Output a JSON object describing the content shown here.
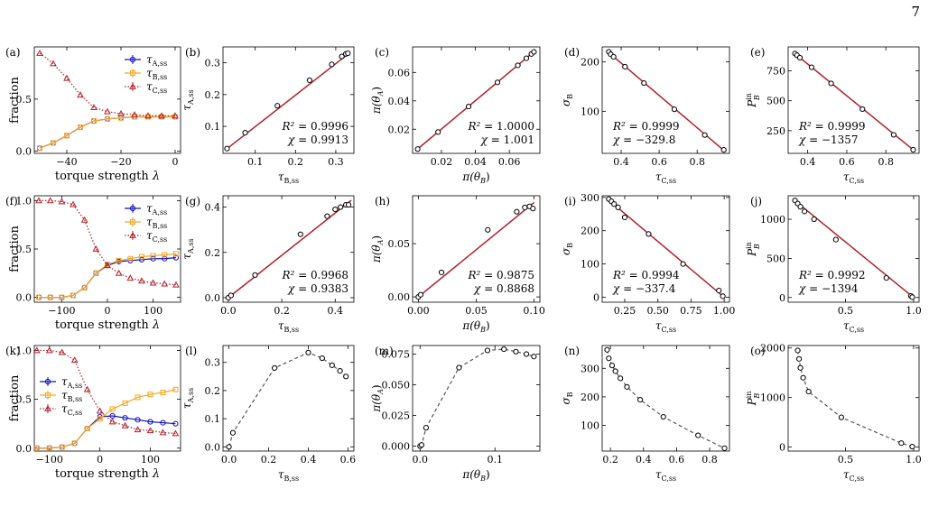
{
  "page_number": "7",
  "colors": {
    "A": "#1010c8",
    "B": "#f5a623",
    "C": "#b0202a",
    "fit": "#b0202a",
    "dashed": "#555555",
    "marker": "#000000"
  },
  "chart_data": [
    {
      "label": "(a)",
      "type": "line",
      "xlabel": "torque strength λ",
      "ylabel": "fraction",
      "xlim": [
        -52,
        2
      ],
      "ylim": [
        -0.02,
        1.0
      ],
      "xticks": [
        -40,
        -20,
        0
      ],
      "xticklabels": [
        "−40",
        "−20",
        "0"
      ],
      "yticks": [
        0.0,
        0.5
      ],
      "yticklabels": [
        "0.0",
        "0.5"
      ],
      "legend": "top-right",
      "series": [
        {
          "name": "τA,ss",
          "color": "A",
          "marker": "circle",
          "style": "solid",
          "x": [
            -50,
            -45,
            -40,
            -35,
            -30,
            -25,
            -20,
            -15,
            -10,
            -5,
            0
          ],
          "y": [
            0.03,
            0.08,
            0.15,
            0.23,
            0.29,
            0.31,
            0.32,
            0.33,
            0.33,
            0.33,
            0.33
          ]
        },
        {
          "name": "τB,ss",
          "color": "B",
          "marker": "square",
          "style": "solid",
          "x": [
            -50,
            -45,
            -40,
            -35,
            -30,
            -25,
            -20,
            -15,
            -10,
            -5,
            0
          ],
          "y": [
            0.03,
            0.08,
            0.15,
            0.23,
            0.29,
            0.31,
            0.32,
            0.33,
            0.33,
            0.33,
            0.33
          ]
        },
        {
          "name": "τC,ss",
          "color": "C",
          "marker": "triangle",
          "style": "dotted",
          "x": [
            -50,
            -45,
            -40,
            -35,
            -30,
            -25,
            -20,
            -15,
            -10,
            -5,
            0
          ],
          "y": [
            0.94,
            0.84,
            0.7,
            0.54,
            0.42,
            0.38,
            0.36,
            0.35,
            0.34,
            0.34,
            0.34
          ]
        }
      ]
    },
    {
      "label": "(b)",
      "type": "scatter",
      "xlabel": "τB,ss",
      "ylabel": "τA,ss",
      "xlim": [
        0.02,
        0.345
      ],
      "ylim": [
        0.015,
        0.35
      ],
      "xticks": [
        0.1,
        0.2,
        0.3
      ],
      "xticklabels": [
        "0.1",
        "0.2",
        "0.3"
      ],
      "yticks": [
        0.1,
        0.2,
        0.3
      ],
      "yticklabels": [
        "0.1",
        "0.2",
        "0.3"
      ],
      "fit": [
        [
          0.03,
          0.0297
        ],
        [
          0.335,
          0.332
        ]
      ],
      "annotation": [
        "R² = 0.9996",
        "χ = 0.9913"
      ],
      "annotation_pos": "bottom-right",
      "x": [
        0.03,
        0.075,
        0.155,
        0.235,
        0.29,
        0.315,
        0.325,
        0.33
      ],
      "y": [
        0.03,
        0.08,
        0.165,
        0.245,
        0.295,
        0.32,
        0.328,
        0.33
      ]
    },
    {
      "label": "(c)",
      "type": "scatter",
      "xlabel": "π(θB)",
      "ylabel": "π(θA)",
      "xlim": [
        0.003,
        0.078
      ],
      "ylim": [
        0.003,
        0.078
      ],
      "xticks": [
        0.02,
        0.04,
        0.06
      ],
      "xticklabels": [
        "0.02",
        "0.04",
        "0.06"
      ],
      "yticks": [
        0.02,
        0.04,
        0.06
      ],
      "yticklabels": [
        "0.02",
        "0.04",
        "0.06"
      ],
      "fit": [
        [
          0.006,
          0.0061
        ],
        [
          0.0745,
          0.0746
        ]
      ],
      "annotation": [
        "R² = 1.0000",
        "χ = 1.001"
      ],
      "annotation_pos": "bottom-right",
      "x": [
        0.006,
        0.018,
        0.036,
        0.053,
        0.065,
        0.07,
        0.073,
        0.0745
      ],
      "y": [
        0.006,
        0.018,
        0.036,
        0.053,
        0.065,
        0.07,
        0.073,
        0.0745
      ]
    },
    {
      "label": "(d)",
      "type": "scatter",
      "xlabel": "τC,ss",
      "ylabel": "σB",
      "xlim": [
        0.3,
        0.97
      ],
      "ylim": [
        15,
        230
      ],
      "xticks": [
        0.4,
        0.6,
        0.8
      ],
      "xticklabels": [
        "0.4",
        "0.6",
        "0.8"
      ],
      "yticks": [
        100,
        200
      ],
      "yticklabels": [
        "100",
        "200"
      ],
      "fit": [
        [
          0.33,
          220
        ],
        [
          0.94,
          21
        ]
      ],
      "annotation": [
        "R² = 0.9999",
        "χ = −329.8"
      ],
      "annotation_pos": "bottom-left",
      "x": [
        0.335,
        0.345,
        0.36,
        0.42,
        0.52,
        0.68,
        0.84,
        0.94
      ],
      "y": [
        220,
        215,
        210,
        190,
        157,
        104,
        52,
        22
      ]
    },
    {
      "label": "(e)",
      "type": "scatter",
      "xlabel": "τC,ss",
      "ylabel": "PBin",
      "xlim": [
        0.3,
        0.97
      ],
      "ylim": [
        60,
        950
      ],
      "xticks": [
        0.4,
        0.6,
        0.8
      ],
      "xticklabels": [
        "0.4",
        "0.6",
        "0.8"
      ],
      "yticks": [
        250,
        500,
        750
      ],
      "yticklabels": [
        "250",
        "500",
        "750"
      ],
      "fit": [
        [
          0.33,
          900
        ],
        [
          0.94,
          90
        ]
      ],
      "annotation": [
        "R² = 0.9999",
        "χ = −1357"
      ],
      "annotation_pos": "bottom-left",
      "x": [
        0.335,
        0.345,
        0.36,
        0.42,
        0.52,
        0.68,
        0.84,
        0.94
      ],
      "y": [
        895,
        880,
        860,
        780,
        645,
        430,
        215,
        90
      ]
    },
    {
      "label": "(f)",
      "type": "line",
      "xlabel": "torque strength λ",
      "ylabel": "fraction",
      "xlim": [
        -160,
        160
      ],
      "ylim": [
        -0.05,
        1.05
      ],
      "xticks": [
        -100,
        0,
        100
      ],
      "xticklabels": [
        "−100",
        "0",
        "100"
      ],
      "yticks": [
        0.0,
        0.5,
        1.0
      ],
      "yticklabels": [
        "0.0",
        "0.5",
        "1.0"
      ],
      "legend": "top-right",
      "series": [
        {
          "name": "τA,ss",
          "color": "A",
          "marker": "circle",
          "style": "solid",
          "x": [
            -150,
            -125,
            -100,
            -75,
            -50,
            -25,
            0,
            25,
            50,
            75,
            100,
            125,
            150
          ],
          "y": [
            0.0,
            0.0,
            0.0,
            0.02,
            0.1,
            0.25,
            0.33,
            0.37,
            0.38,
            0.39,
            0.4,
            0.4,
            0.41
          ]
        },
        {
          "name": "τB,ss",
          "color": "B",
          "marker": "square",
          "style": "solid",
          "x": [
            -150,
            -125,
            -100,
            -75,
            -50,
            -25,
            0,
            25,
            50,
            75,
            100,
            125,
            150
          ],
          "y": [
            0.0,
            0.0,
            0.0,
            0.02,
            0.1,
            0.25,
            0.34,
            0.38,
            0.4,
            0.42,
            0.43,
            0.44,
            0.45
          ]
        },
        {
          "name": "τC,ss",
          "color": "C",
          "marker": "triangle",
          "style": "dotted",
          "x": [
            -150,
            -125,
            -100,
            -75,
            -50,
            -25,
            0,
            25,
            50,
            75,
            100,
            125,
            150
          ],
          "y": [
            1.0,
            1.0,
            0.99,
            0.96,
            0.8,
            0.5,
            0.33,
            0.25,
            0.2,
            0.17,
            0.15,
            0.14,
            0.13
          ]
        }
      ]
    },
    {
      "label": "(g)",
      "type": "scatter",
      "xlabel": "τB,ss",
      "ylabel": "τA,ss",
      "xlim": [
        -0.02,
        0.47
      ],
      "ylim": [
        -0.02,
        0.45
      ],
      "xticks": [
        0.0,
        0.2,
        0.4
      ],
      "xticklabels": [
        "0.0",
        "0.2",
        "0.4"
      ],
      "yticks": [
        0.0,
        0.2,
        0.4
      ],
      "yticklabels": [
        "0.0",
        "0.2",
        "0.4"
      ],
      "fit": [
        [
          0.0,
          0.0
        ],
        [
          0.46,
          0.43
        ]
      ],
      "annotation": [
        "R² = 0.9968",
        "χ = 0.9383"
      ],
      "annotation_pos": "bottom-right",
      "x": [
        0.0,
        0.01,
        0.1,
        0.27,
        0.37,
        0.4,
        0.42,
        0.44,
        0.45
      ],
      "y": [
        0.0,
        0.01,
        0.1,
        0.28,
        0.36,
        0.39,
        0.4,
        0.41,
        0.41
      ]
    },
    {
      "label": "(h)",
      "type": "scatter",
      "xlabel": "π(θB)",
      "ylabel": "π(θA)",
      "xlim": [
        -0.005,
        0.105
      ],
      "ylim": [
        -0.005,
        0.095
      ],
      "xticks": [
        0.0,
        0.05,
        0.1
      ],
      "xticklabels": [
        "0.00",
        "0.05",
        "0.10"
      ],
      "yticks": [
        0.0,
        0.05
      ],
      "yticklabels": [
        "0.00",
        "0.05"
      ],
      "fit": [
        [
          0.0,
          0.0
        ],
        [
          0.1,
          0.0887
        ]
      ],
      "annotation": [
        "R² = 0.9875",
        "χ = 0.8868"
      ],
      "annotation_pos": "bottom-right",
      "x": [
        0.0,
        0.002,
        0.02,
        0.06,
        0.085,
        0.092,
        0.096,
        0.099
      ],
      "y": [
        0.0,
        0.002,
        0.023,
        0.063,
        0.08,
        0.084,
        0.085,
        0.083
      ]
    },
    {
      "label": "(i)",
      "type": "scatter",
      "xlabel": "τC,ss",
      "ylabel": "σB",
      "xlim": [
        0.08,
        1.04
      ],
      "ylim": [
        -15,
        305
      ],
      "xticks": [
        0.25,
        0.5,
        0.75,
        1.0
      ],
      "xticklabels": [
        "0.25",
        "0.50",
        "0.75",
        "1.00"
      ],
      "yticks": [
        0,
        100,
        200,
        300
      ],
      "yticklabels": [
        "0",
        "100",
        "200",
        "300"
      ],
      "fit": [
        [
          0.12,
          295
        ],
        [
          1.0,
          0
        ]
      ],
      "annotation": [
        "R² = 0.9994",
        "χ = −337.4"
      ],
      "annotation_pos": "bottom-left",
      "x": [
        0.13,
        0.15,
        0.17,
        0.2,
        0.25,
        0.43,
        0.69,
        0.96,
        0.99
      ],
      "y": [
        295,
        288,
        280,
        270,
        240,
        190,
        100,
        20,
        3
      ]
    },
    {
      "label": "(j)",
      "type": "scatter",
      "xlabel": "τC,ss",
      "ylabel": "PBin",
      "xlim": [
        0.08,
        1.04
      ],
      "ylim": [
        -60,
        1300
      ],
      "xticks": [
        0.5,
        1.0
      ],
      "xticklabels": [
        "0.5",
        "1.0"
      ],
      "yticks": [
        0,
        500,
        1000
      ],
      "yticklabels": [
        "0",
        "500",
        "1000"
      ],
      "fit": [
        [
          0.12,
          1250
        ],
        [
          1.0,
          0
        ]
      ],
      "annotation": [
        "R² = 0.9992",
        "χ = −1394"
      ],
      "annotation_pos": "bottom-left",
      "x": [
        0.13,
        0.15,
        0.17,
        0.2,
        0.27,
        0.43,
        0.8,
        0.98,
        0.99
      ],
      "y": [
        1240,
        1200,
        1160,
        1100,
        1000,
        740,
        250,
        20,
        5
      ]
    },
    {
      "label": "(k)",
      "type": "line",
      "xlabel": "torque strength λ",
      "ylabel": "fraction",
      "xlim": [
        -130,
        160
      ],
      "ylim": [
        -0.03,
        1.05
      ],
      "xticks": [
        -100,
        0,
        100
      ],
      "xticklabels": [
        "−100",
        "0",
        "100"
      ],
      "yticks": [
        0.0,
        0.5,
        1.0
      ],
      "yticklabels": [
        "0.0",
        "0.5",
        "1.0"
      ],
      "legend": "middle-left",
      "series": [
        {
          "name": "τA,ss",
          "color": "A",
          "marker": "circle",
          "style": "solid",
          "x": [
            -125,
            -100,
            -75,
            -50,
            -25,
            0,
            25,
            50,
            75,
            100,
            125,
            150
          ],
          "y": [
            0.0,
            0.0,
            0.01,
            0.05,
            0.2,
            0.32,
            0.33,
            0.31,
            0.29,
            0.27,
            0.26,
            0.25
          ]
        },
        {
          "name": "τB,ss",
          "color": "B",
          "marker": "square",
          "style": "solid",
          "x": [
            -125,
            -100,
            -75,
            -50,
            -25,
            0,
            25,
            50,
            75,
            100,
            125,
            150
          ],
          "y": [
            0.0,
            0.0,
            0.01,
            0.05,
            0.2,
            0.3,
            0.4,
            0.46,
            0.52,
            0.55,
            0.57,
            0.6
          ]
        },
        {
          "name": "τC,ss",
          "color": "C",
          "marker": "triangle",
          "style": "dotted",
          "x": [
            -125,
            -100,
            -75,
            -50,
            -25,
            0,
            25,
            50,
            75,
            100,
            125,
            150
          ],
          "y": [
            1.0,
            1.0,
            0.98,
            0.9,
            0.6,
            0.38,
            0.27,
            0.23,
            0.19,
            0.18,
            0.16,
            0.15
          ]
        }
      ]
    },
    {
      "label": "(l)",
      "type": "line",
      "xlabel": "τB,ss",
      "ylabel": "τA,ss",
      "xlim": [
        -0.03,
        0.63
      ],
      "ylim": [
        -0.015,
        0.36
      ],
      "xticks": [
        0.0,
        0.2,
        0.4,
        0.6
      ],
      "xticklabels": [
        "0.0",
        "0.2",
        "0.4",
        "0.6"
      ],
      "yticks": [
        0.0,
        0.1,
        0.2,
        0.3
      ],
      "yticklabels": [
        "0.0",
        "0.1",
        "0.2",
        "0.3"
      ],
      "dashed": true,
      "x": [
        0.0,
        0.02,
        0.23,
        0.4,
        0.47,
        0.52,
        0.56,
        0.59
      ],
      "y": [
        0.0,
        0.05,
        0.28,
        0.335,
        0.315,
        0.29,
        0.27,
        0.25
      ]
    },
    {
      "label": "(m)",
      "type": "line",
      "xlabel": "π(θB)",
      "ylabel": "π(θA)",
      "xlim": [
        -0.01,
        0.16
      ],
      "ylim": [
        -0.004,
        0.082
      ],
      "xticks": [
        0.0,
        0.1
      ],
      "xticklabels": [
        "0.0",
        "0.1"
      ],
      "yticks": [
        0.0,
        0.025,
        0.05,
        0.075
      ],
      "yticklabels": [
        "0.000",
        "0.025",
        "0.050",
        "0.075"
      ],
      "dashed": true,
      "x": [
        0.0,
        0.002,
        0.008,
        0.052,
        0.09,
        0.112,
        0.128,
        0.142,
        0.152
      ],
      "y": [
        0.0,
        0.001,
        0.015,
        0.064,
        0.078,
        0.079,
        0.077,
        0.075,
        0.073
      ]
    },
    {
      "label": "(n)",
      "type": "line",
      "xlabel": "τC,ss",
      "ylabel": "σB",
      "xlim": [
        0.15,
        0.92
      ],
      "ylim": [
        10,
        380
      ],
      "xticks": [
        0.2,
        0.4,
        0.6,
        0.8
      ],
      "xticklabels": [
        "0.2",
        "0.4",
        "0.6",
        "0.8"
      ],
      "yticks": [
        100,
        200,
        300
      ],
      "yticklabels": [
        "100",
        "200",
        "300"
      ],
      "dashed": true,
      "x": [
        0.18,
        0.19,
        0.21,
        0.23,
        0.26,
        0.3,
        0.38,
        0.52,
        0.73,
        0.89
      ],
      "y": [
        365,
        335,
        310,
        290,
        265,
        235,
        190,
        130,
        65,
        20
      ]
    },
    {
      "label": "(o)",
      "type": "line",
      "xlabel": "τC,ss",
      "ylabel": "PBin",
      "xlim": [
        0.08,
        1.04
      ],
      "ylim": [
        -80,
        2050
      ],
      "xticks": [
        0.5,
        1.0
      ],
      "xticklabels": [
        "0.5",
        "1.0"
      ],
      "yticks": [
        0,
        1000,
        2000
      ],
      "yticklabels": [
        "0",
        "1000",
        "2000"
      ],
      "dashed": true,
      "x": [
        0.15,
        0.16,
        0.17,
        0.19,
        0.23,
        0.47,
        0.91,
        0.99
      ],
      "y": [
        1950,
        1780,
        1600,
        1400,
        1120,
        600,
        80,
        10
      ]
    }
  ]
}
